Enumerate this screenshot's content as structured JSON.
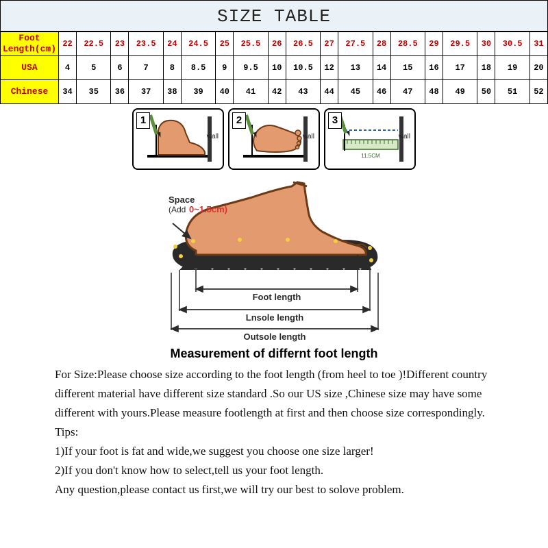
{
  "title": "SIZE TABLE",
  "table": {
    "row_labels": [
      "Foot\nLength(cm)",
      "USA",
      "Chinese"
    ],
    "foot_length": [
      "22",
      "22.5",
      "23",
      "23.5",
      "24",
      "24.5",
      "25",
      "25.5",
      "26",
      "26.5",
      "27",
      "27.5",
      "28",
      "28.5",
      "29",
      "29.5",
      "30",
      "30.5",
      "31"
    ],
    "usa": [
      "4",
      "5",
      "6",
      "7",
      "8",
      "8.5",
      "9",
      "9.5",
      "10",
      "10.5",
      "12",
      "13",
      "14",
      "15",
      "16",
      "17",
      "18",
      "19",
      "20"
    ],
    "chinese": [
      "34",
      "35",
      "36",
      "37",
      "38",
      "39",
      "40",
      "41",
      "42",
      "43",
      "44",
      "45",
      "46",
      "47",
      "48",
      "49",
      "50",
      "51",
      "52"
    ],
    "header_bg": "#ffff00",
    "header_text_color": "#c00000",
    "title_bg": "#eaf2f8",
    "foot_row_color": "#c00000",
    "value_color": "#000000",
    "border_color": "#000000",
    "font_family": "Courier New"
  },
  "steps": {
    "count": 3,
    "labels": [
      "1",
      "2",
      "3"
    ],
    "wall_text": "wall",
    "ruler_value": "11.5CM",
    "foot_fill": "#e29a6e",
    "foot_stroke": "#6b3a17",
    "pencil_body": "#5a8f3e",
    "pencil_tip": "#222222",
    "box_border": "#000000",
    "box_radius": 8
  },
  "diagram": {
    "space_label": "Space",
    "space_sub_label": "(Add",
    "space_value": "0~1.5cm)",
    "foot_length_label": "Foot length",
    "insole_length_label": "Lnsole length",
    "outsole_length_label": "Outsole length",
    "foot_fill": "#e29a6e",
    "foot_stroke": "#6b3a17",
    "sole_fill": "#2a2a2a",
    "sole_tread": "#2a2a2a",
    "arrow_color": "#2b2b2b",
    "text_color": "#2b2b2b",
    "space_value_color": "#e03030"
  },
  "measure_title": "Measurement of differnt foot length",
  "body": {
    "para1": "For Size:Please choose size according to the foot length (from heel to toe )!Different country",
    "para2": "different material have different size standard .So our US size ,Chinese size may have some",
    "para3": "different with yours.Please measure footlength at first and then choose size correspondingly.",
    "tips_label": "Tips:",
    "tip1": "1)If your foot is fat and wide,we suggest you choose one size larger!",
    "tip2": "2)If you don't know how to select,tell us your foot length.",
    "closing": "Any question,please contact us first,we will try our best to solove problem."
  }
}
